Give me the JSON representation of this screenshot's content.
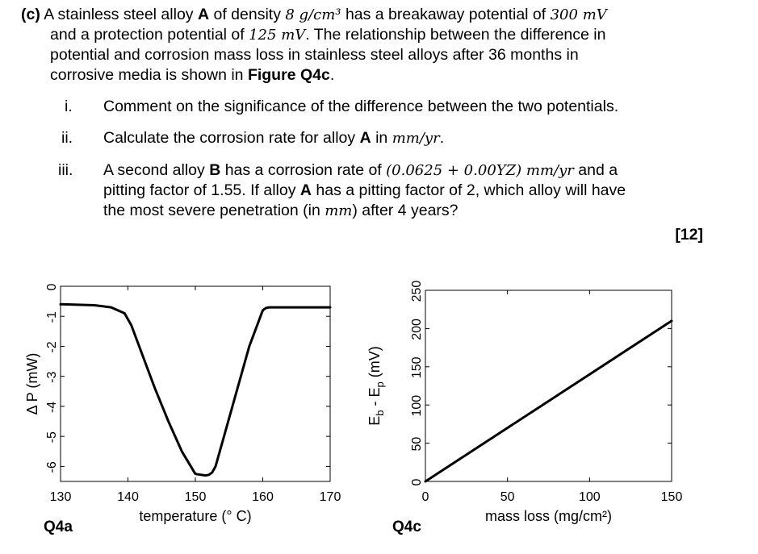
{
  "question": {
    "part_label": "(c)",
    "intro": {
      "line1_a": "A stainless steel alloy",
      "alloy_a": "A",
      "line1_b": "of density",
      "density": "8 g/cm³",
      "line1_c": "has a breakaway potential of",
      "breakaway": "300 mV",
      "line2_a": "and a protection potential of",
      "protection": "125 mV",
      "line2_b": ". The relationship between the difference in",
      "line3": "potential and corrosion mass loss in stainless steel alloys after 36 months in",
      "line4_a": "corrosive media is shown in",
      "figure_ref": "Figure Q4c",
      "line4_b": "."
    },
    "items": [
      {
        "numeral": "i.",
        "text": "Comment on the significance of the difference between the two potentials."
      },
      {
        "numeral": "ii.",
        "text_a": "Calculate the corrosion rate for alloy",
        "alloy": "A",
        "text_b": "in",
        "unit": "mm/yr",
        "text_c": "."
      },
      {
        "numeral": "iii.",
        "l1_a": "A second alloy",
        "alloy_b": "B",
        "l1_b": "has a corrosion rate of",
        "rate": "(0.0625 + 0.00YZ) mm/yr",
        "l1_c": "and a",
        "l2_a": "pitting factor of 1.55. If alloy",
        "alloy_a": "A",
        "l2_b": "has a pitting factor of 2, which alloy will have",
        "l3_a": "the most severe penetration (in",
        "mm": "mm",
        "l3_b": ") after 4 years?"
      }
    ],
    "marks": "[12]"
  },
  "chart_data": [
    {
      "type": "line",
      "figure_label": "Q4a",
      "xlabel": "temperature (° C)",
      "ylabel": "Δ P (mW)",
      "xlim": [
        130,
        170
      ],
      "ylim": [
        -6.5,
        0
      ],
      "x_ticks": [
        130,
        140,
        150,
        160,
        170
      ],
      "y_ticks": [
        0,
        -1,
        -2,
        -3,
        -4,
        -5,
        -6
      ],
      "series": [
        {
          "x": [
            130,
            135,
            137.5,
            139.5,
            140.5,
            142,
            144,
            146,
            148,
            150,
            151.5,
            152,
            152.5,
            153,
            154,
            156,
            158,
            160,
            160.5,
            161,
            163,
            170
          ],
          "y": [
            -0.6,
            -0.63,
            -0.7,
            -0.9,
            -1.3,
            -2.2,
            -3.4,
            -4.5,
            -5.5,
            -6.25,
            -6.3,
            -6.28,
            -6.2,
            -6.0,
            -5.2,
            -3.6,
            -2.0,
            -0.8,
            -0.72,
            -0.7,
            -0.7,
            -0.7
          ]
        }
      ],
      "grid": false
    },
    {
      "type": "line",
      "figure_label": "Q4c",
      "xlabel": "mass loss (mg/cm²)",
      "ylabel": "E_b - E_p (mV)",
      "xlim": [
        0,
        150
      ],
      "ylim": [
        0,
        250
      ],
      "x_ticks": [
        0,
        50,
        100,
        150
      ],
      "y_ticks": [
        0,
        50,
        100,
        150,
        200,
        250
      ],
      "series": [
        {
          "x": [
            0,
            150
          ],
          "y": [
            0,
            210
          ]
        }
      ],
      "grid": false
    }
  ]
}
